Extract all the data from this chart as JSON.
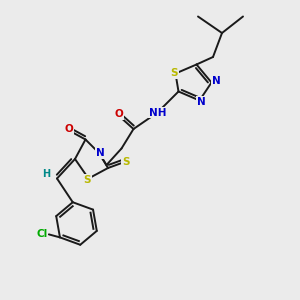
{
  "background_color": "#ebebeb",
  "bond_color": "#1a1a1a",
  "bond_width": 1.4,
  "atom_colors": {
    "S": "#b8b800",
    "N": "#0000cc",
    "O": "#cc0000",
    "Cl": "#00aa00",
    "H": "#008888",
    "C": "#1a1a1a"
  },
  "font_size": 7.0,
  "fig_size": [
    3.0,
    3.0
  ],
  "dpi": 100
}
